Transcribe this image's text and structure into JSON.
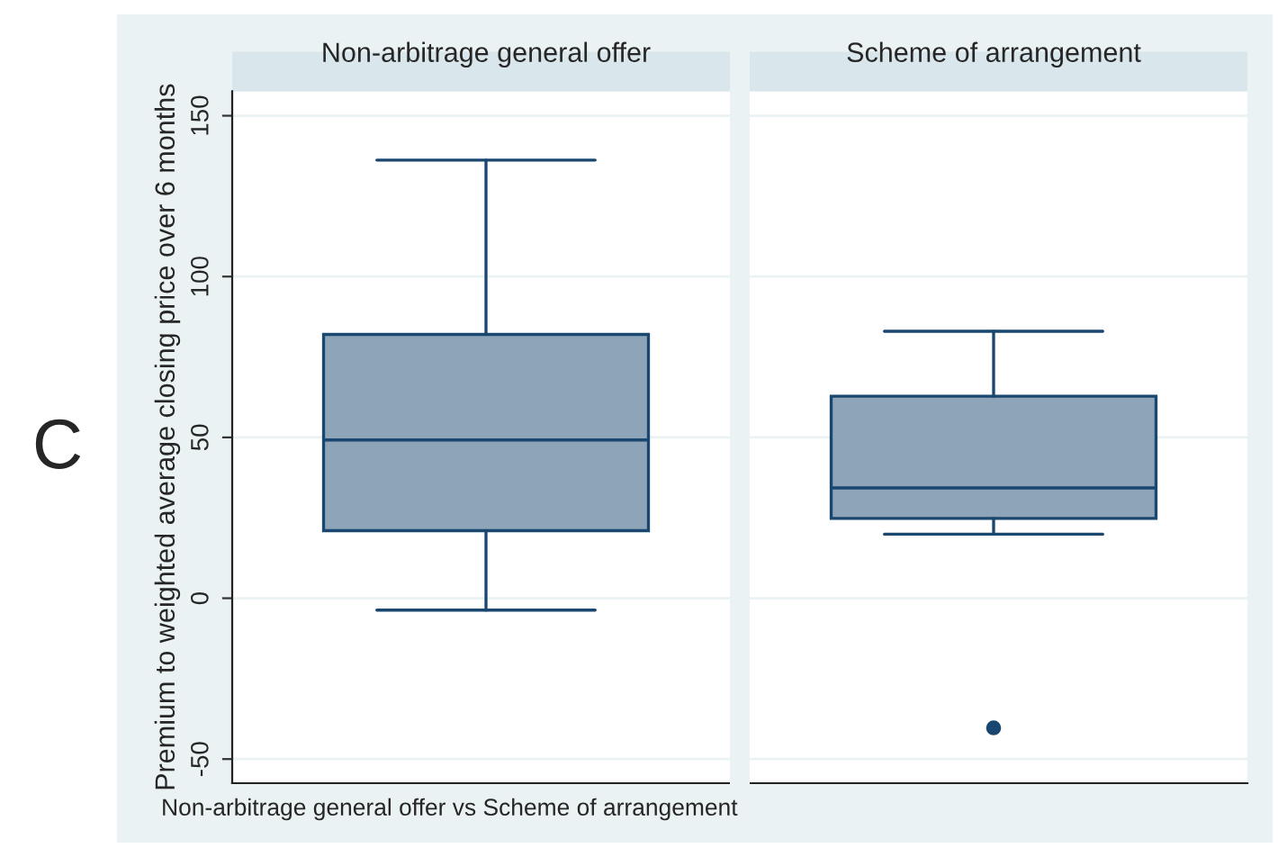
{
  "chart_data": {
    "type": "box",
    "categories": [
      "Non-arbitrage general offer",
      "Scheme of arrangement"
    ],
    "xlabel": "Non-arbitrage general offer vs Scheme of arrangement",
    "ylabel": "Premium to weighted average closing price over 6 months",
    "ylim": [
      -57.5,
      157.6
    ],
    "yticks": [
      -50,
      0,
      50,
      100,
      150
    ],
    "grid": "y",
    "color": "#8ea4b9",
    "boxes": [
      {
        "low": -3.7,
        "q1": 21.0,
        "median": 49.2,
        "q3": 82.0,
        "high": 136.2
      },
      {
        "low": 19.9,
        "q1": 24.8,
        "median": 34.3,
        "q3": 62.8,
        "high": 83.0,
        "outliers": [
          -40.3
        ]
      }
    ],
    "annotations": [
      "C"
    ]
  }
}
